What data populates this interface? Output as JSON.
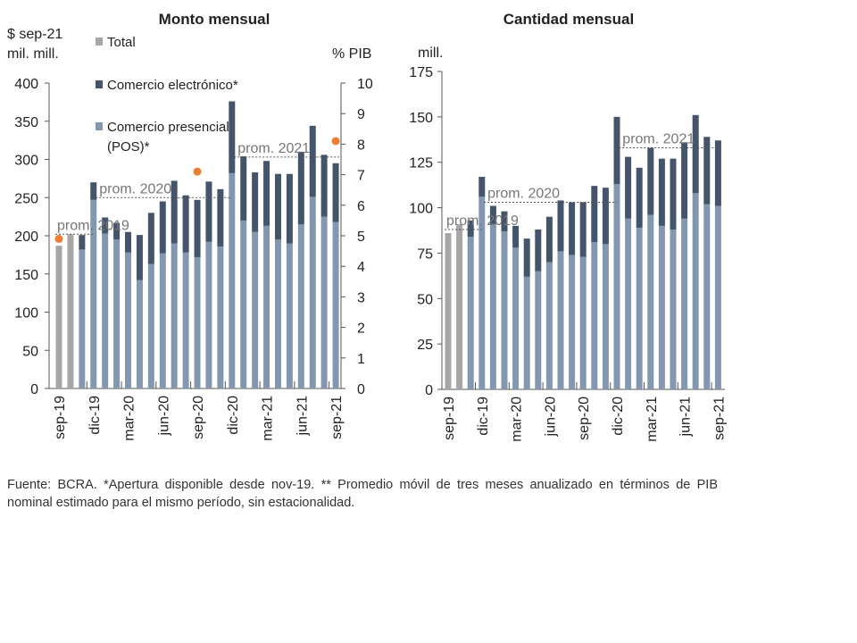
{
  "chart_data": [
    {
      "type": "bar",
      "title": "Monto mensual",
      "ylabel": "$ sep-21 mil. mill.",
      "y2label": "% PIB",
      "ylim": [
        0,
        400
      ],
      "y2lim": [
        0,
        10
      ],
      "yticks": [
        0,
        50,
        100,
        150,
        200,
        250,
        300,
        350,
        400
      ],
      "y2ticks": [
        0,
        1,
        2,
        3,
        4,
        5,
        6,
        7,
        8,
        9,
        10
      ],
      "categories": [
        "sep-19",
        "oct-19",
        "nov-19",
        "dic-19",
        "ene-20",
        "feb-20",
        "mar-20",
        "abr-20",
        "may-20",
        "jun-20",
        "jul-20",
        "ago-20",
        "sep-20",
        "oct-20",
        "nov-20",
        "dic-20",
        "ene-21",
        "feb-21",
        "mar-21",
        "abr-21",
        "may-21",
        "jun-21",
        "jul-21",
        "ago-21",
        "sep-21"
      ],
      "xtick_labels": [
        "sep-19",
        "dic-19",
        "mar-20",
        "jun-20",
        "sep-20",
        "dic-20",
        "mar-21",
        "jun-21",
        "sep-21"
      ],
      "series": [
        {
          "name": "Total",
          "color": "#a6a6a6",
          "values": [
            187,
            202,
            null,
            null,
            null,
            null,
            null,
            null,
            null,
            null,
            null,
            null,
            null,
            null,
            null,
            null,
            null,
            null,
            null,
            null,
            null,
            null,
            null,
            null,
            null
          ]
        },
        {
          "name": "Comercio presencial (POS)*",
          "color": "#8497b0",
          "values": [
            null,
            null,
            182,
            247,
            203,
            195,
            178,
            142,
            163,
            177,
            190,
            178,
            172,
            192,
            186,
            282,
            220,
            205,
            213,
            195,
            190,
            215,
            251,
            225,
            218
          ]
        },
        {
          "name": "Comercio electrónico*",
          "color": "#44546a",
          "values": [
            null,
            null,
            19,
            23,
            21,
            22,
            27,
            59,
            67,
            68,
            82,
            75,
            75,
            79,
            75,
            94,
            84,
            78,
            85,
            86,
            91,
            95,
            93,
            81,
            77
          ]
        },
        {
          "name": "% PIB**",
          "color": "#ed7d31",
          "axis": "right",
          "points": [
            {
              "x": "sep-19",
              "y": 4.9
            },
            {
              "x": "sep-20",
              "y": 7.1
            },
            {
              "x": "sep-21",
              "y": 8.1
            }
          ]
        }
      ],
      "legend": [
        "Total",
        "Comercio electrónico*",
        "Comercio presencial",
        "(POS)*"
      ],
      "averages": [
        {
          "label": "prom. 2019",
          "value": 202,
          "from": "sep-19",
          "to": "dic-19"
        },
        {
          "label": "prom. 2020",
          "value": 250,
          "from": "dic-19",
          "to": "dic-20"
        },
        {
          "label": "prom. 2021",
          "value": 303,
          "from": "dic-20",
          "to": "sep-21"
        }
      ]
    },
    {
      "type": "bar",
      "title": "Cantidad mensual",
      "ylabel": "mill.",
      "ylim": [
        0,
        175
      ],
      "yticks": [
        0,
        25,
        50,
        75,
        100,
        125,
        150,
        175
      ],
      "categories": [
        "sep-19",
        "oct-19",
        "nov-19",
        "dic-19",
        "ene-20",
        "feb-20",
        "mar-20",
        "abr-20",
        "may-20",
        "jun-20",
        "jul-20",
        "ago-20",
        "sep-20",
        "oct-20",
        "nov-20",
        "dic-20",
        "ene-21",
        "feb-21",
        "mar-21",
        "abr-21",
        "may-21",
        "jun-21",
        "jul-21",
        "ago-21",
        "sep-21"
      ],
      "xtick_labels": [
        "sep-19",
        "dic-19",
        "mar-20",
        "jun-20",
        "sep-20",
        "dic-20",
        "mar-21",
        "jun-21",
        "sep-21"
      ],
      "series": [
        {
          "name": "Total",
          "color": "#a6a6a6",
          "values": [
            86,
            91,
            null,
            null,
            null,
            null,
            null,
            null,
            null,
            null,
            null,
            null,
            null,
            null,
            null,
            null,
            null,
            null,
            null,
            null,
            null,
            null,
            null,
            null,
            null
          ]
        },
        {
          "name": "Comercio presencial (POS)*",
          "color": "#8497b0",
          "values": [
            null,
            null,
            84,
            106,
            91,
            87,
            78,
            62,
            65,
            70,
            76,
            74,
            73,
            81,
            80,
            113,
            94,
            89,
            96,
            90,
            88,
            94,
            108,
            102,
            101
          ]
        },
        {
          "name": "Comercio electrónico*",
          "color": "#44546a",
          "values": [
            null,
            null,
            9,
            11,
            10,
            11,
            12,
            21,
            23,
            25,
            28,
            29,
            30,
            31,
            31,
            37,
            34,
            33,
            37,
            37,
            39,
            42,
            43,
            37,
            36
          ]
        }
      ],
      "averages": [
        {
          "label": "prom. 2019",
          "value": 88,
          "from": "sep-19",
          "to": "dic-19"
        },
        {
          "label": "prom. 2020",
          "value": 103,
          "from": "dic-19",
          "to": "dic-20"
        },
        {
          "label": "prom. 2021",
          "value": 133,
          "from": "dic-20",
          "to": "sep-21"
        }
      ]
    }
  ],
  "footnote": "Fuente: BCRA. *Apertura disponible desde nov-19. ** Promedio móvil de tres meses anualizado en términos de PIB nominal estimado para el mismo período, sin estacionalidad."
}
